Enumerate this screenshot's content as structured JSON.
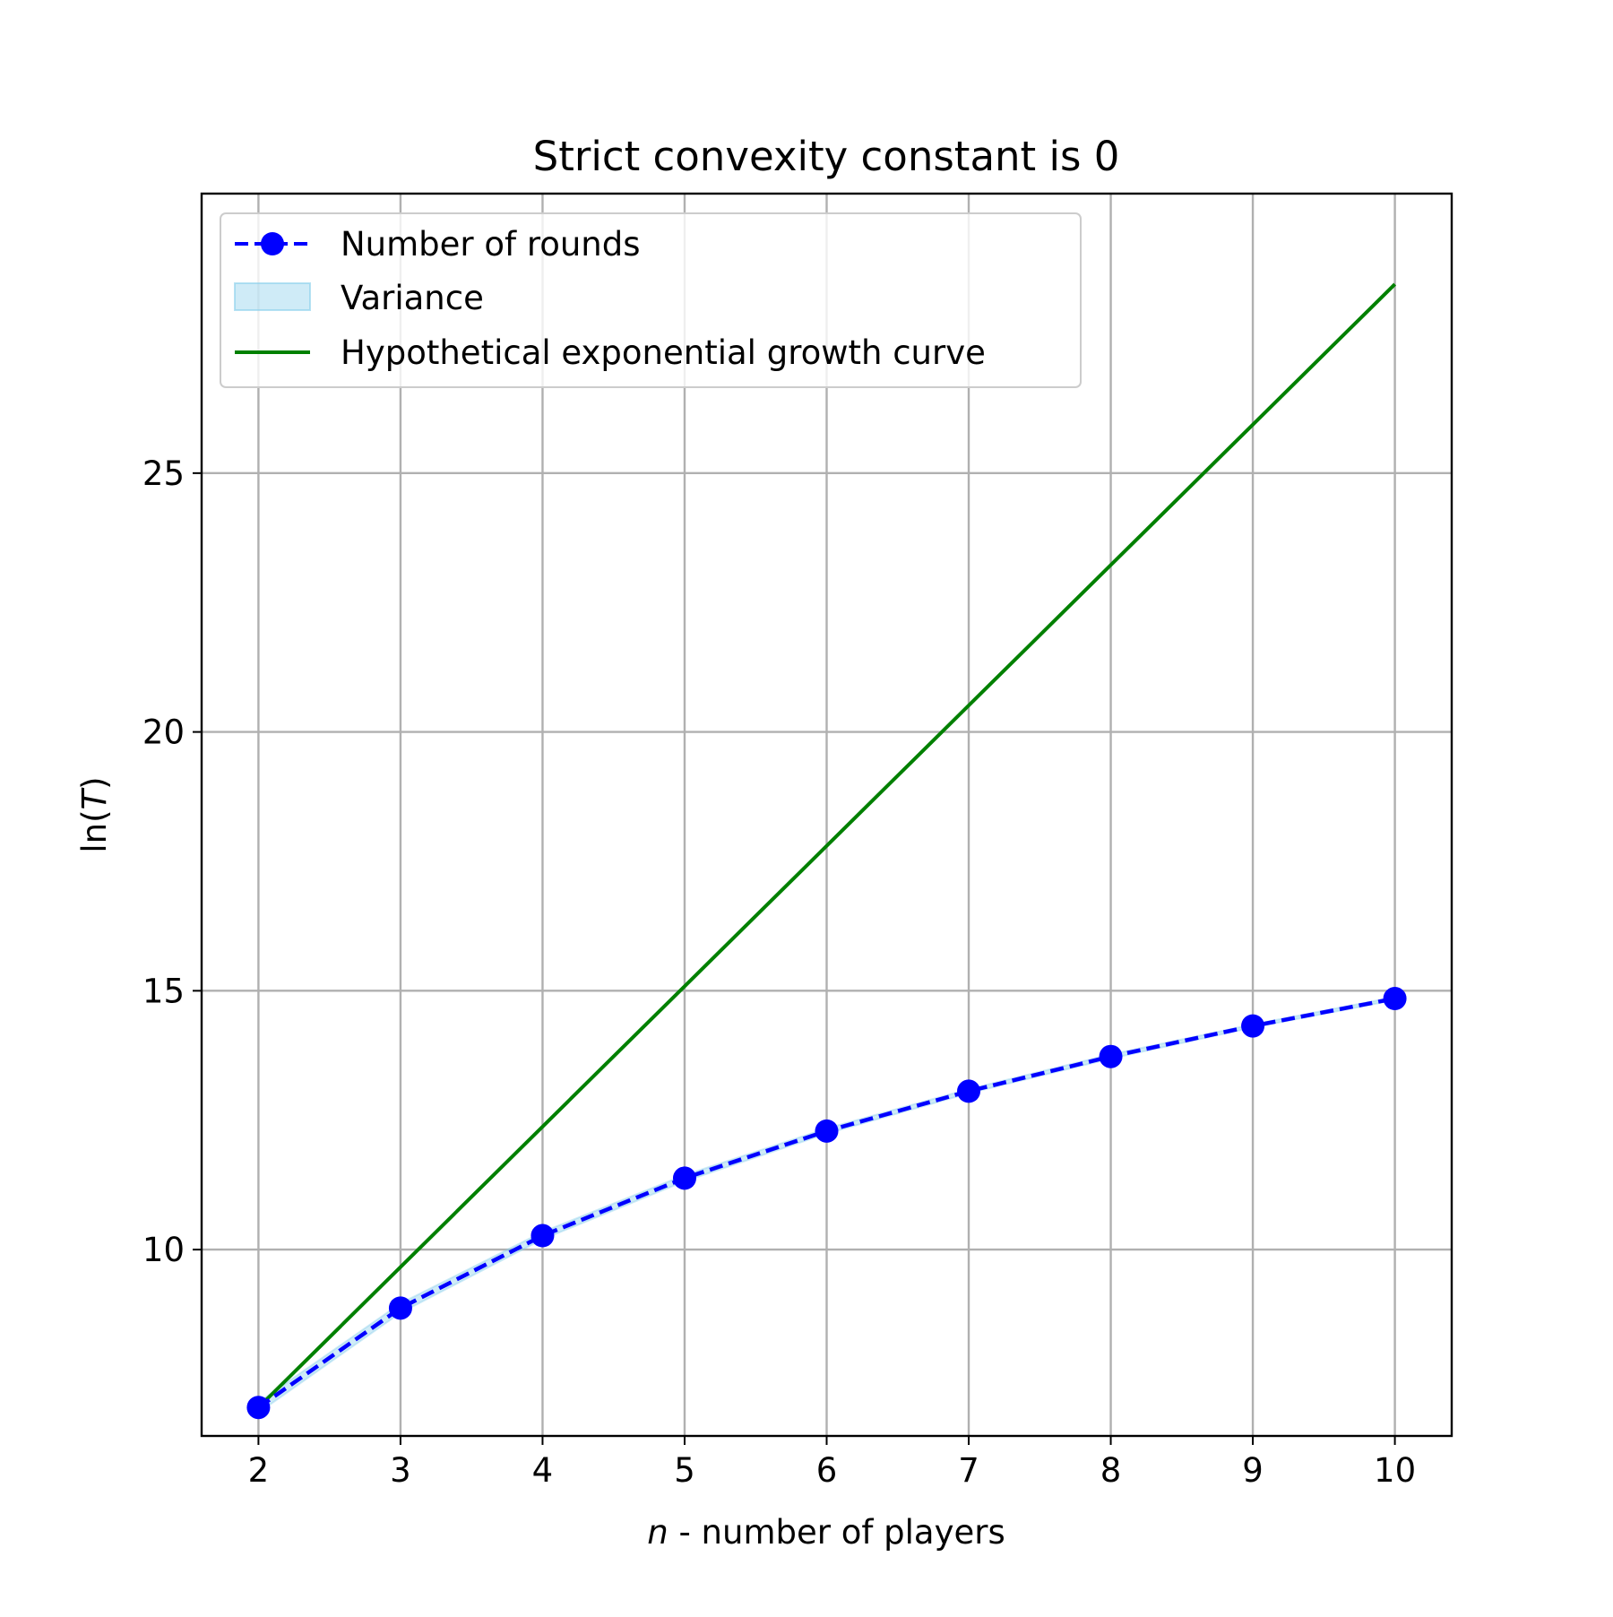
{
  "chart_data": {
    "type": "line",
    "title": "Strict convexity constant is 0",
    "xlabel": {
      "italic": "n",
      "rest": " - number of players"
    },
    "ylabel": {
      "prefix": "ln(",
      "italic": "T",
      "suffix": ")"
    },
    "xlim": [
      1.6,
      10.4
    ],
    "ylim": [
      6.4,
      30.4
    ],
    "x_ticks": [
      2,
      3,
      4,
      5,
      6,
      7,
      8,
      9,
      10
    ],
    "x_tick_labels": [
      "2",
      "3",
      "4",
      "5",
      "6",
      "7",
      "8",
      "9",
      "10"
    ],
    "y_ticks": [
      10,
      15,
      20,
      25
    ],
    "y_tick_labels": [
      "10",
      "15",
      "20",
      "25"
    ],
    "grid": true,
    "legend_position": "top-left",
    "series": [
      {
        "name": "Number of rounds",
        "style": "dashed-line-with-circle-markers",
        "color": "#0000ff",
        "x": [
          2,
          3,
          4,
          5,
          6,
          7,
          8,
          9,
          10
        ],
        "y": [
          6.95,
          8.87,
          10.27,
          11.38,
          12.29,
          13.06,
          13.73,
          14.32,
          14.85
        ]
      },
      {
        "name": "Variance",
        "style": "shaded-band",
        "color": "#87ceeb",
        "x": [
          2,
          3,
          4,
          5,
          6,
          7,
          8,
          9,
          10
        ],
        "lower": [
          6.85,
          8.78,
          10.2,
          11.32,
          12.24,
          13.02,
          13.69,
          14.29,
          14.82
        ],
        "upper": [
          7.05,
          8.96,
          10.34,
          11.44,
          12.34,
          13.1,
          13.77,
          14.35,
          14.88
        ]
      },
      {
        "name": "Hypothetical exponential growth curve",
        "style": "solid-line",
        "color": "#008000",
        "x": [
          2,
          10
        ],
        "y": [
          6.95,
          28.65
        ]
      }
    ]
  }
}
